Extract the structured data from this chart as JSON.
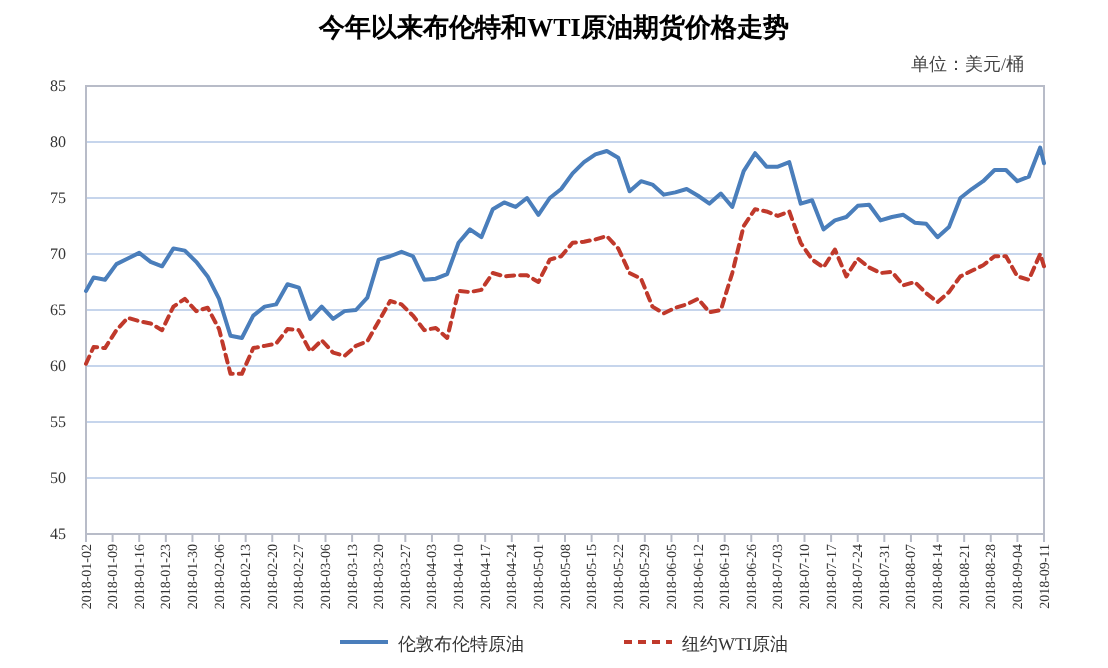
{
  "chart_data": {
    "type": "line",
    "title": "今年以来布伦特和WTI原油期货价格走势",
    "annotations": [
      "单位：美元/桶"
    ],
    "x": [
      "2018-01-02",
      "2018-01-04",
      "2018-01-07",
      "2018-01-10",
      "2018-01-13",
      "2018-01-16",
      "2018-01-19",
      "2018-01-22",
      "2018-01-25",
      "2018-01-28",
      "2018-01-31",
      "2018-02-03",
      "2018-02-06",
      "2018-02-09",
      "2018-02-12",
      "2018-02-15",
      "2018-02-18",
      "2018-02-21",
      "2018-02-24",
      "2018-02-27",
      "2018-03-02",
      "2018-03-05",
      "2018-03-08",
      "2018-03-11",
      "2018-03-14",
      "2018-03-17",
      "2018-03-20",
      "2018-03-23",
      "2018-03-26",
      "2018-03-29",
      "2018-04-01",
      "2018-04-04",
      "2018-04-07",
      "2018-04-10",
      "2018-04-13",
      "2018-04-16",
      "2018-04-19",
      "2018-04-22",
      "2018-04-25",
      "2018-04-28",
      "2018-05-01",
      "2018-05-04",
      "2018-05-07",
      "2018-05-10",
      "2018-05-13",
      "2018-05-16",
      "2018-05-19",
      "2018-05-22",
      "2018-05-25",
      "2018-05-28",
      "2018-05-31",
      "2018-06-03",
      "2018-06-06",
      "2018-06-09",
      "2018-06-12",
      "2018-06-15",
      "2018-06-18",
      "2018-06-21",
      "2018-06-24",
      "2018-06-27",
      "2018-06-30",
      "2018-07-03",
      "2018-07-06",
      "2018-07-09",
      "2018-07-12",
      "2018-07-15",
      "2018-07-18",
      "2018-07-21",
      "2018-07-24",
      "2018-07-27",
      "2018-07-30",
      "2018-08-02",
      "2018-08-05",
      "2018-08-08",
      "2018-08-11",
      "2018-08-14",
      "2018-08-17",
      "2018-08-20",
      "2018-08-23",
      "2018-08-26",
      "2018-08-29",
      "2018-09-01",
      "2018-09-04",
      "2018-09-07",
      "2018-09-10",
      "2018-09-11"
    ],
    "series": [
      {
        "name": "伦敦布伦特原油",
        "color": "#4a7ebb",
        "line_style": "solid",
        "values": [
          66.7,
          67.9,
          67.7,
          69.1,
          69.6,
          70.1,
          69.3,
          68.9,
          70.5,
          70.3,
          69.3,
          68.0,
          66.0,
          62.7,
          62.5,
          64.5,
          65.3,
          65.5,
          67.3,
          67.0,
          64.2,
          65.3,
          64.2,
          64.9,
          65.0,
          66.1,
          69.5,
          69.8,
          70.2,
          69.8,
          67.7,
          67.8,
          68.2,
          71.0,
          72.2,
          71.5,
          74.0,
          74.6,
          74.2,
          75.0,
          73.5,
          75.0,
          75.8,
          77.2,
          78.2,
          78.9,
          79.2,
          78.6,
          75.6,
          76.5,
          76.2,
          75.3,
          75.5,
          75.8,
          75.2,
          74.5,
          75.4,
          74.2,
          77.4,
          79.0,
          77.8,
          77.8,
          78.2,
          74.5,
          74.8,
          72.2,
          73.0,
          73.3,
          74.3,
          74.4,
          73.0,
          73.3,
          73.5,
          72.8,
          72.7,
          71.5,
          72.4,
          75.0,
          75.8,
          76.5,
          77.5,
          77.5,
          76.5,
          76.9,
          79.5,
          78.1
        ]
      },
      {
        "name": "纽约WTI原油",
        "color": "#c0392b",
        "line_style": "dashed",
        "values": [
          60.2,
          61.7,
          61.6,
          63.2,
          64.3,
          64.0,
          63.8,
          63.2,
          65.3,
          66.0,
          64.9,
          65.2,
          63.3,
          59.3,
          59.3,
          61.6,
          61.8,
          62.0,
          63.3,
          63.2,
          61.3,
          62.3,
          61.2,
          60.9,
          61.8,
          62.2,
          64.0,
          65.8,
          65.5,
          64.5,
          63.2,
          63.4,
          62.5,
          66.7,
          66.6,
          66.8,
          68.3,
          68.0,
          68.1,
          68.1,
          67.5,
          69.5,
          69.8,
          71.0,
          71.1,
          71.3,
          71.6,
          70.5,
          68.3,
          67.8,
          65.3,
          64.7,
          65.2,
          65.5,
          66.0,
          64.8,
          65.0,
          68.3,
          72.5,
          74.0,
          73.8,
          73.4,
          73.8,
          71.0,
          69.5,
          68.8,
          70.4,
          68.0,
          69.6,
          68.8,
          68.3,
          68.4,
          67.2,
          67.5,
          66.5,
          65.7,
          66.6,
          68.0,
          68.5,
          69.0,
          69.8,
          69.8,
          68.0,
          67.7,
          70.0,
          68.9
        ]
      }
    ],
    "xlim": [
      "2018-01-02",
      "2018-09-11"
    ],
    "xticks": [
      "2018-01-02",
      "2018-01-09",
      "2018-01-16",
      "2018-01-23",
      "2018-01-30",
      "2018-02-06",
      "2018-02-13",
      "2018-02-20",
      "2018-02-27",
      "2018-03-06",
      "2018-03-13",
      "2018-03-20",
      "2018-03-27",
      "2018-04-03",
      "2018-04-10",
      "2018-04-17",
      "2018-04-24",
      "2018-05-01",
      "2018-05-08",
      "2018-05-15",
      "2018-05-22",
      "2018-05-29",
      "2018-06-05",
      "2018-06-12",
      "2018-06-19",
      "2018-06-26",
      "2018-07-03",
      "2018-07-10",
      "2018-07-17",
      "2018-07-24",
      "2018-07-31",
      "2018-08-07",
      "2018-08-14",
      "2018-08-21",
      "2018-08-28",
      "2018-09-04",
      "2018-09-11"
    ],
    "ylim": [
      45,
      85
    ],
    "yticks": [
      45,
      50,
      55,
      60,
      65,
      70,
      75,
      80,
      85
    ],
    "grid": "y",
    "legend": "bottom",
    "marker": "none"
  }
}
